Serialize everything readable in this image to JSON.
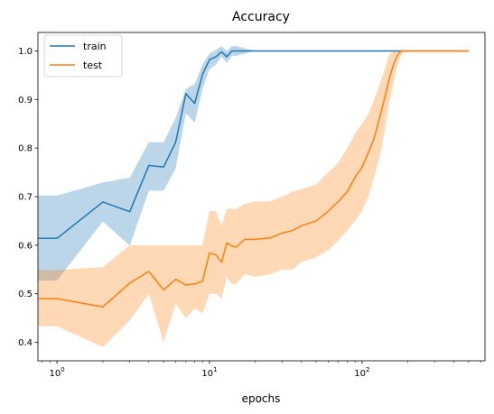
{
  "chart_data": {
    "type": "line",
    "title": "Accuracy",
    "xlabel": "epochs",
    "ylabel": "",
    "xscale": "log",
    "xlim": [
      0.75,
      640
    ],
    "ylim": [
      0.362,
      1.038
    ],
    "grid": false,
    "legend": {
      "placement": "top-left",
      "entries": [
        "train",
        "test"
      ]
    },
    "x_ticks": [
      {
        "value": 1,
        "base": "10",
        "exp": "0"
      },
      {
        "value": 10,
        "base": "10",
        "exp": "1"
      },
      {
        "value": 100,
        "base": "10",
        "exp": "2"
      }
    ],
    "y_ticks": [
      {
        "value": 0.4,
        "label": "0.4"
      },
      {
        "value": 0.5,
        "label": "0.5"
      },
      {
        "value": 0.6,
        "label": "0.6"
      },
      {
        "value": 0.7,
        "label": "0.7"
      },
      {
        "value": 0.8,
        "label": "0.8"
      },
      {
        "value": 0.9,
        "label": "0.9"
      },
      {
        "value": 1.0,
        "label": "1.0"
      }
    ],
    "series": [
      {
        "name": "train",
        "color": "#1f77b4",
        "band_color": "#1f77b4",
        "x": [
          0.75,
          1,
          2,
          3,
          4,
          5,
          6,
          7,
          8,
          9,
          10,
          11,
          12,
          13,
          14,
          15,
          20,
          50,
          100,
          200,
          500
        ],
        "y": [
          0.614,
          0.614,
          0.689,
          0.669,
          0.764,
          0.761,
          0.812,
          0.912,
          0.892,
          0.952,
          0.982,
          0.988,
          0.998,
          0.988,
          1.0,
          1.0,
          1.0,
          1.0,
          1.0,
          1.0,
          1.0
        ],
        "lower": [
          0.527,
          0.527,
          0.649,
          0.599,
          0.712,
          0.712,
          0.758,
          0.872,
          0.852,
          0.922,
          0.962,
          0.972,
          0.988,
          0.975,
          0.99,
          0.99,
          1.0,
          1.0,
          1.0,
          1.0,
          1.0
        ],
        "upper": [
          0.702,
          0.702,
          0.729,
          0.739,
          0.812,
          0.812,
          0.862,
          0.922,
          0.932,
          0.972,
          0.995,
          1.002,
          1.01,
          1.0,
          1.01,
          1.01,
          1.0,
          1.0,
          1.0,
          1.0,
          1.0
        ]
      },
      {
        "name": "test",
        "color": "#ff7f0e",
        "band_color": "#ff7f0e",
        "x": [
          0.75,
          1,
          2,
          3,
          4,
          5,
          6,
          7,
          8,
          9,
          10,
          11,
          12,
          13,
          14,
          15,
          17,
          20,
          25,
          30,
          35,
          40,
          50,
          60,
          70,
          80,
          90,
          100,
          110,
          120,
          130,
          140,
          150,
          160,
          170,
          180,
          190,
          200,
          300,
          500
        ],
        "y": [
          0.49,
          0.49,
          0.473,
          0.522,
          0.546,
          0.508,
          0.53,
          0.518,
          0.52,
          0.526,
          0.584,
          0.58,
          0.565,
          0.605,
          0.598,
          0.596,
          0.612,
          0.612,
          0.615,
          0.625,
          0.63,
          0.64,
          0.65,
          0.67,
          0.69,
          0.71,
          0.74,
          0.76,
          0.79,
          0.82,
          0.86,
          0.9,
          0.94,
          0.97,
          0.99,
          1.0,
          1.0,
          1.0,
          1.0,
          1.0
        ],
        "lower": [
          0.433,
          0.433,
          0.39,
          0.445,
          0.5,
          0.4,
          0.48,
          0.45,
          0.47,
          0.46,
          0.5,
          0.5,
          0.49,
          0.535,
          0.52,
          0.52,
          0.54,
          0.535,
          0.54,
          0.55,
          0.55,
          0.565,
          0.575,
          0.59,
          0.61,
          0.63,
          0.65,
          0.67,
          0.7,
          0.74,
          0.78,
          0.83,
          0.89,
          0.93,
          0.97,
          0.99,
          1.0,
          1.0,
          1.0,
          1.0
        ],
        "upper": [
          0.549,
          0.549,
          0.555,
          0.6,
          0.6,
          0.6,
          0.6,
          0.6,
          0.6,
          0.6,
          0.67,
          0.67,
          0.64,
          0.675,
          0.675,
          0.675,
          0.685,
          0.69,
          0.69,
          0.7,
          0.71,
          0.715,
          0.725,
          0.75,
          0.77,
          0.8,
          0.83,
          0.85,
          0.87,
          0.9,
          0.93,
          0.96,
          0.99,
          1.0,
          1.0,
          1.0,
          1.0,
          1.0,
          1.0,
          1.0
        ]
      }
    ]
  }
}
